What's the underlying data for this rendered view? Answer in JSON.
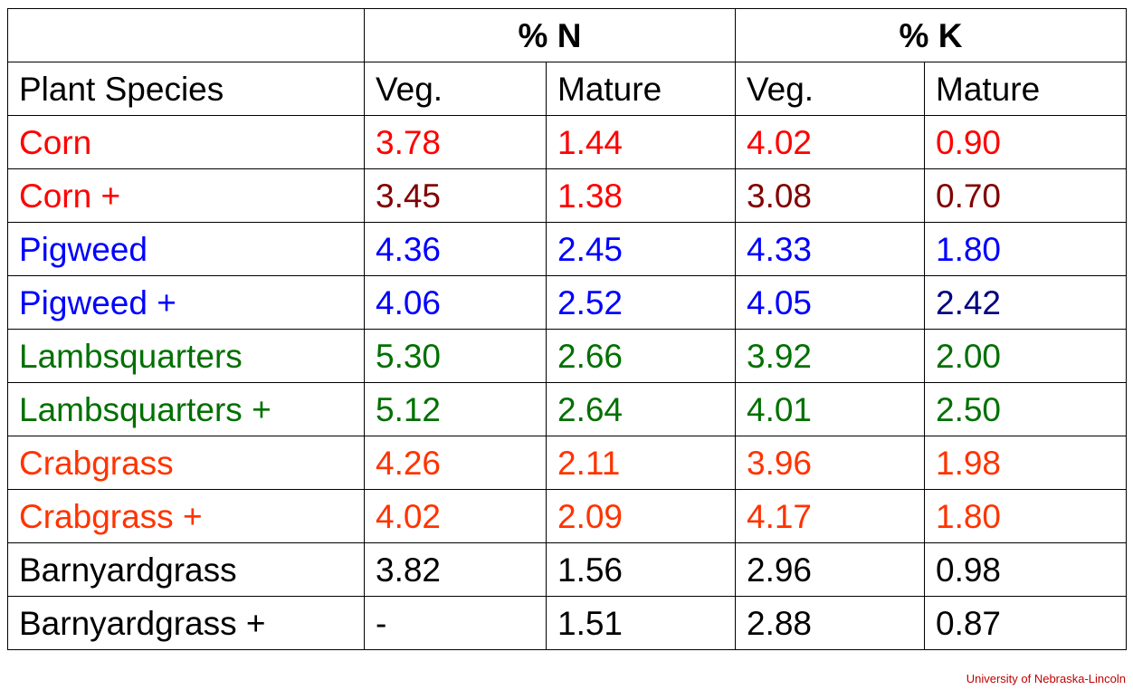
{
  "table": {
    "group_headers": [
      "% N",
      "% K"
    ],
    "column_headers": [
      "Plant Species",
      "Veg.",
      "Mature",
      "Veg.",
      "Mature"
    ],
    "rows": [
      {
        "species": "Corn",
        "values": [
          "3.78",
          "1.44",
          "4.02",
          "0.90"
        ],
        "colors": [
          "#ff0000",
          "#ff0000",
          "#ff0000",
          "#ff0000",
          "#ff0000"
        ]
      },
      {
        "species": "Corn +",
        "values": [
          "3.45",
          "1.38",
          "3.08",
          "0.70"
        ],
        "colors": [
          "#ff0000",
          "#800000",
          "#ff0000",
          "#800000",
          "#800000"
        ]
      },
      {
        "species": "Pigweed",
        "values": [
          "4.36",
          "2.45",
          "4.33",
          "1.80"
        ],
        "colors": [
          "#0000ff",
          "#0000ff",
          "#0000ff",
          "#0000ff",
          "#0000ff"
        ]
      },
      {
        "species": "Pigweed +",
        "values": [
          "4.06",
          "2.52",
          "4.05",
          "2.42"
        ],
        "colors": [
          "#0000ff",
          "#0000ff",
          "#0000ff",
          "#0000ff",
          "#000080"
        ]
      },
      {
        "species": "Lambsquarters",
        "values": [
          "5.30",
          "2.66",
          "3.92",
          "2.00"
        ],
        "colors": [
          "#007000",
          "#007000",
          "#007000",
          "#007000",
          "#007000"
        ]
      },
      {
        "species": "Lambsquarters +",
        "values": [
          "5.12",
          "2.64",
          "4.01",
          "2.50"
        ],
        "colors": [
          "#007000",
          "#007000",
          "#007000",
          "#007000",
          "#007000"
        ]
      },
      {
        "species": "Crabgrass",
        "values": [
          "4.26",
          "2.11",
          "3.96",
          "1.98"
        ],
        "colors": [
          "#ff3300",
          "#ff3300",
          "#ff3300",
          "#ff3300",
          "#ff3300"
        ]
      },
      {
        "species": "Crabgrass +",
        "values": [
          "4.02",
          "2.09",
          "4.17",
          "1.80"
        ],
        "colors": [
          "#ff3300",
          "#ff3300",
          "#ff3300",
          "#ff3300",
          "#ff3300"
        ]
      },
      {
        "species": "Barnyardgrass",
        "values": [
          "3.82",
          "1.56",
          "2.96",
          "0.98"
        ],
        "colors": [
          "#000000",
          "#000000",
          "#000000",
          "#000000",
          "#000000"
        ]
      },
      {
        "species": "Barnyardgrass +",
        "values": [
          "-",
          "1.51",
          "2.88",
          "0.87"
        ],
        "colors": [
          "#000000",
          "#000000",
          "#000000",
          "#000000",
          "#000000"
        ]
      }
    ]
  },
  "credit": "University of Nebraska-Lincoln"
}
